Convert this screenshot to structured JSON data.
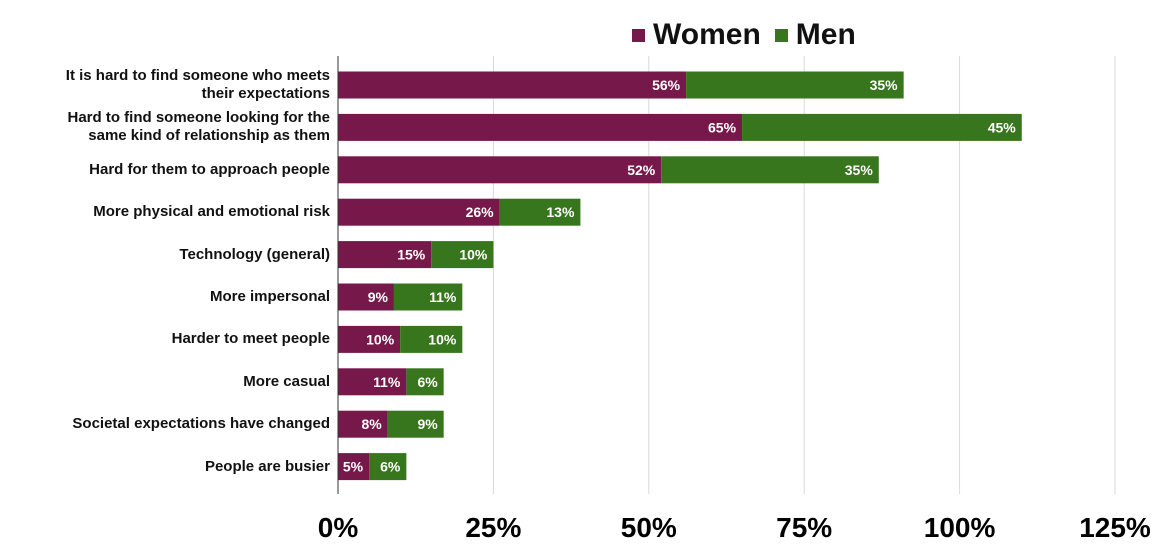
{
  "colors": {
    "women": "#76194a",
    "men": "#38761d",
    "grid": "#d9d9d9",
    "axis": "#333333"
  },
  "legend": {
    "women": "Women",
    "men": "Men"
  },
  "chart_data": {
    "type": "bar",
    "orientation": "horizontal",
    "stacked": true,
    "categories": [
      "It is hard to find someone who meets\ntheir expectations",
      "Hard to find someone looking for the\nsame kind of relationship as them",
      "Hard for them to approach people",
      "More physical and emotional risk",
      "Technology (general)",
      "More impersonal",
      "Harder to meet people",
      "More casual",
      "Societal expectations have changed",
      "People are busier"
    ],
    "series": [
      {
        "name": "Women",
        "values": [
          56,
          65,
          52,
          26,
          15,
          9,
          10,
          11,
          8,
          5
        ],
        "labels": [
          "56%",
          "65%",
          "52%",
          "26%",
          "15%",
          "9%",
          "10%",
          "11%",
          "8%",
          "5%"
        ]
      },
      {
        "name": "Men",
        "values": [
          35,
          45,
          35,
          13,
          10,
          11,
          10,
          6,
          9,
          6
        ],
        "labels": [
          "35%",
          "45%",
          "35%",
          "13%",
          "10%",
          "11%",
          "10%",
          "6%",
          "9%",
          "6%"
        ]
      }
    ],
    "xlim": [
      0,
      125
    ],
    "xticks": [
      0,
      25,
      50,
      75,
      100,
      125
    ],
    "xtick_labels": [
      "0%",
      "25%",
      "50%",
      "75%",
      "100%",
      "125%"
    ],
    "grid": true,
    "legend_position": "top"
  }
}
